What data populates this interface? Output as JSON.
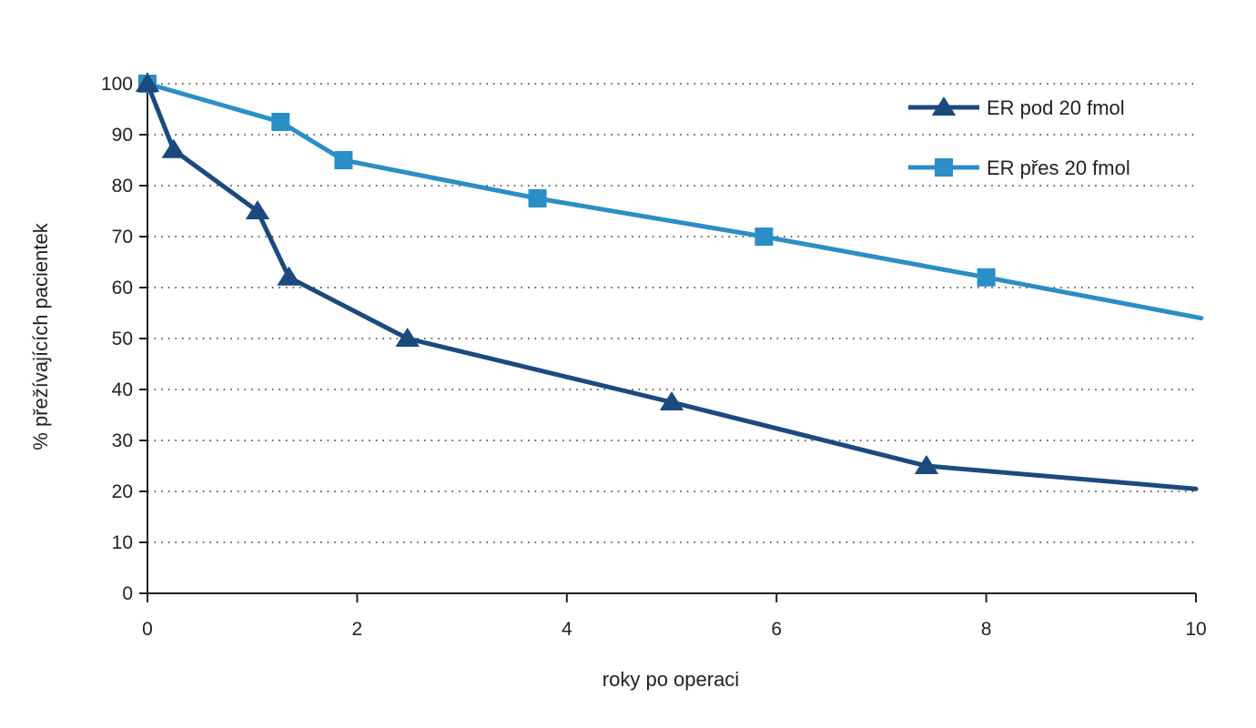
{
  "chart_data": {
    "type": "line",
    "xlabel": "roky po operaci",
    "ylabel": "% přežívajících pacientek",
    "xlim": [
      0,
      10
    ],
    "ylim": [
      0,
      100
    ],
    "xticks": [
      0,
      2,
      4,
      6,
      8,
      10
    ],
    "yticks": [
      0,
      10,
      20,
      30,
      40,
      50,
      60,
      70,
      80,
      90,
      100
    ],
    "grid": "horizontal dotted",
    "legend_position": "top-right",
    "series": [
      {
        "name": "ER pod 20 fmol",
        "color": "#1a4a7e",
        "marker": "triangle",
        "points": [
          {
            "x": 0,
            "y": 100,
            "marker": true
          },
          {
            "x": 0.25,
            "y": 87,
            "marker": true
          },
          {
            "x": 1.05,
            "y": 75,
            "marker": true
          },
          {
            "x": 1.35,
            "y": 62,
            "marker": true
          },
          {
            "x": 2.48,
            "y": 50,
            "marker": true
          },
          {
            "x": 5.0,
            "y": 37.5,
            "marker": true
          },
          {
            "x": 7.43,
            "y": 25,
            "marker": true
          },
          {
            "x": 10.0,
            "y": 20.5,
            "marker": false
          }
        ]
      },
      {
        "name": "ER přes 20 fmol",
        "color": "#2b8ec6",
        "marker": "square",
        "points": [
          {
            "x": 0,
            "y": 100,
            "marker": true
          },
          {
            "x": 1.27,
            "y": 92.5,
            "marker": true
          },
          {
            "x": 1.87,
            "y": 85,
            "marker": true
          },
          {
            "x": 3.72,
            "y": 77.5,
            "marker": true
          },
          {
            "x": 5.88,
            "y": 70,
            "marker": true
          },
          {
            "x": 8.0,
            "y": 62,
            "marker": true
          },
          {
            "x": 10.05,
            "y": 54,
            "marker": false
          }
        ]
      }
    ]
  }
}
